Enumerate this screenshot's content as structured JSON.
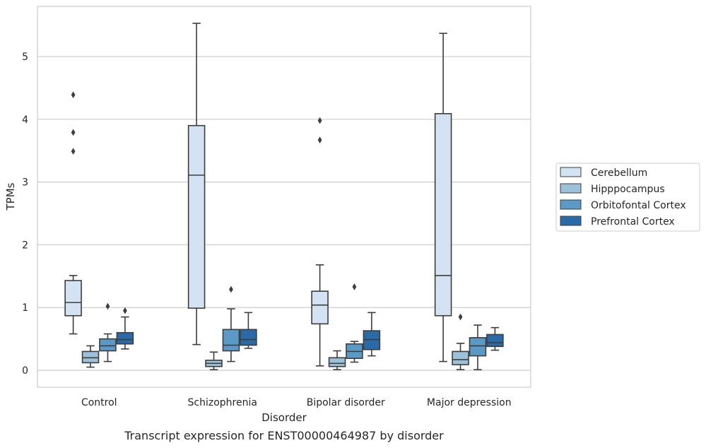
{
  "chart_data": {
    "type": "boxplot",
    "xlabel": "Disorder",
    "ylabel": "TPMs",
    "caption": "Transcript expression for ENST00000464987 by disorder",
    "ylim": [
      -0.27,
      5.8
    ],
    "yticks": [
      0,
      1,
      2,
      3,
      4,
      5
    ],
    "grid": true,
    "legend_position": "right",
    "categories": [
      "Control",
      "Schizophrenia",
      "Bipolar disorder",
      "Major depression"
    ],
    "series": [
      {
        "name": "Cerebellum",
        "color": "#d4e3f3",
        "boxes": [
          {
            "whislo": 0.58,
            "q1": 0.87,
            "med": 1.08,
            "q3": 1.43,
            "whishi": 1.51,
            "fliers": [
              3.49,
              3.79,
              4.39
            ]
          },
          {
            "whislo": 0.41,
            "q1": 0.99,
            "med": 3.11,
            "q3": 3.9,
            "whishi": 5.53,
            "fliers": []
          },
          {
            "whislo": 0.07,
            "q1": 0.74,
            "med": 1.04,
            "q3": 1.26,
            "whishi": 1.68,
            "fliers": [
              3.67,
              3.98
            ]
          },
          {
            "whislo": 0.14,
            "q1": 0.87,
            "med": 1.51,
            "q3": 4.09,
            "whishi": 5.37,
            "fliers": []
          }
        ]
      },
      {
        "name": "Hipppocampus",
        "color": "#9cc1d9",
        "boxes": [
          {
            "whislo": 0.05,
            "q1": 0.12,
            "med": 0.2,
            "q3": 0.3,
            "whishi": 0.39,
            "fliers": []
          },
          {
            "whislo": 0.01,
            "q1": 0.06,
            "med": 0.11,
            "q3": 0.16,
            "whishi": 0.29,
            "fliers": []
          },
          {
            "whislo": 0.01,
            "q1": 0.06,
            "med": 0.11,
            "q3": 0.2,
            "whishi": 0.31,
            "fliers": []
          },
          {
            "whislo": 0.01,
            "q1": 0.09,
            "med": 0.17,
            "q3": 0.3,
            "whishi": 0.43,
            "fliers": [
              0.85
            ]
          }
        ]
      },
      {
        "name": "Orbitofontal Cortex",
        "color": "#5b9ac6",
        "boxes": [
          {
            "whislo": 0.14,
            "q1": 0.31,
            "med": 0.39,
            "q3": 0.5,
            "whishi": 0.58,
            "fliers": [
              1.02
            ]
          },
          {
            "whislo": 0.14,
            "q1": 0.31,
            "med": 0.4,
            "q3": 0.65,
            "whishi": 0.98,
            "fliers": [
              1.29
            ]
          },
          {
            "whislo": 0.13,
            "q1": 0.19,
            "med": 0.3,
            "q3": 0.42,
            "whishi": 0.46,
            "fliers": [
              1.33
            ]
          },
          {
            "whislo": 0.01,
            "q1": 0.23,
            "med": 0.39,
            "q3": 0.52,
            "whishi": 0.72,
            "fliers": []
          }
        ]
      },
      {
        "name": "Prefrontal Cortex",
        "color": "#2a6aa8",
        "boxes": [
          {
            "whislo": 0.34,
            "q1": 0.42,
            "med": 0.49,
            "q3": 0.6,
            "whishi": 0.85,
            "fliers": [
              0.95
            ]
          },
          {
            "whislo": 0.35,
            "q1": 0.4,
            "med": 0.49,
            "q3": 0.65,
            "whishi": 0.92,
            "fliers": []
          },
          {
            "whislo": 0.23,
            "q1": 0.33,
            "med": 0.49,
            "q3": 0.63,
            "whishi": 0.92,
            "fliers": []
          },
          {
            "whislo": 0.32,
            "q1": 0.38,
            "med": 0.44,
            "q3": 0.57,
            "whishi": 0.68,
            "fliers": []
          }
        ]
      }
    ]
  }
}
